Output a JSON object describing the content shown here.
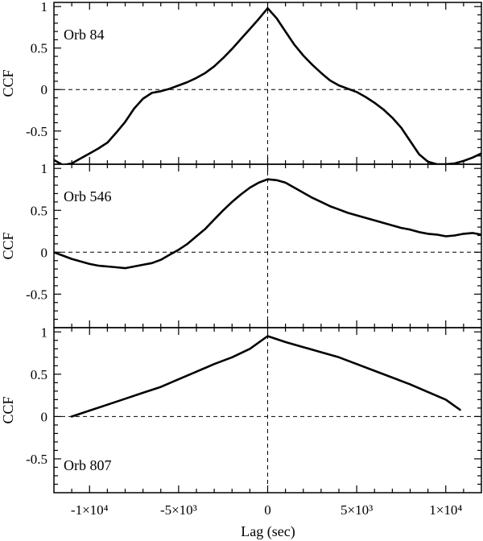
{
  "chart_data": {
    "type": "line",
    "xlabel": "Lag (sec)",
    "xlim": [
      -12000,
      12000
    ],
    "x_ticks": [
      {
        "value": -10000,
        "label": "-1×10⁴"
      },
      {
        "value": -5000,
        "label": "-5×10³"
      },
      {
        "value": 0,
        "label": "0"
      },
      {
        "value": 5000,
        "label": "5×10³"
      },
      {
        "value": 10000,
        "label": "1×10⁴"
      }
    ],
    "ylabel": "CCF",
    "y_ticks": [
      {
        "value": 1,
        "label": "1"
      },
      {
        "value": 0.5,
        "label": "0.5"
      },
      {
        "value": 0,
        "label": "0"
      },
      {
        "value": -0.5,
        "label": "-0.5"
      }
    ],
    "panels": [
      {
        "label": "Orb 84",
        "label_position": "top-left",
        "ylim": [
          -0.9,
          1.05
        ],
        "series": [
          {
            "x": [
              -12000,
              -11500,
              -11000,
              -10500,
              -10000,
              -9500,
              -9000,
              -8500,
              -8000,
              -7500,
              -7000,
              -6500,
              -6000,
              -5500,
              -5000,
              -4500,
              -4000,
              -3500,
              -3000,
              -2500,
              -2000,
              -1500,
              -1000,
              -500,
              0,
              500,
              1000,
              1500,
              2000,
              2500,
              3000,
              3500,
              4000,
              4500,
              5000,
              5500,
              6000,
              6500,
              7000,
              7500,
              8000,
              8500,
              9000,
              9500,
              10000,
              10500,
              11000,
              11500,
              12000
            ],
            "y": [
              -0.85,
              -0.91,
              -0.89,
              -0.83,
              -0.77,
              -0.71,
              -0.64,
              -0.52,
              -0.39,
              -0.23,
              -0.11,
              -0.04,
              -0.02,
              0.01,
              0.05,
              0.09,
              0.14,
              0.2,
              0.28,
              0.38,
              0.49,
              0.61,
              0.73,
              0.85,
              0.98,
              0.86,
              0.7,
              0.54,
              0.41,
              0.3,
              0.2,
              0.11,
              0.05,
              0.01,
              -0.03,
              -0.09,
              -0.16,
              -0.24,
              -0.34,
              -0.46,
              -0.62,
              -0.78,
              -0.87,
              -0.9,
              -0.9,
              -0.89,
              -0.86,
              -0.82,
              -0.77
            ]
          }
        ]
      },
      {
        "label": "Orb 546",
        "label_position": "top-left",
        "ylim": [
          -0.9,
          1.05
        ],
        "series": [
          {
            "x": [
              -12000,
              -11500,
              -11000,
              -10500,
              -10000,
              -9500,
              -9000,
              -8500,
              -8000,
              -7500,
              -7000,
              -6500,
              -6000,
              -5500,
              -5000,
              -4500,
              -4000,
              -3500,
              -3000,
              -2500,
              -2000,
              -1500,
              -1000,
              -500,
              0,
              500,
              1000,
              1500,
              2000,
              2500,
              3000,
              3500,
              4000,
              4500,
              5000,
              5500,
              6000,
              6500,
              7000,
              7500,
              8000,
              8500,
              9000,
              9500,
              10000,
              10500,
              11000,
              11500,
              12000
            ],
            "y": [
              0.0,
              -0.04,
              -0.08,
              -0.11,
              -0.14,
              -0.16,
              -0.17,
              -0.18,
              -0.19,
              -0.17,
              -0.15,
              -0.13,
              -0.09,
              -0.03,
              0.03,
              0.1,
              0.19,
              0.28,
              0.39,
              0.5,
              0.6,
              0.69,
              0.77,
              0.83,
              0.87,
              0.86,
              0.83,
              0.77,
              0.71,
              0.65,
              0.6,
              0.55,
              0.51,
              0.47,
              0.44,
              0.41,
              0.38,
              0.35,
              0.32,
              0.29,
              0.27,
              0.24,
              0.22,
              0.21,
              0.19,
              0.2,
              0.22,
              0.23,
              0.21
            ]
          }
        ]
      },
      {
        "label": "Orb 807",
        "label_position": "bottom-left",
        "ylim": [
          -0.9,
          1.05
        ],
        "series": [
          {
            "x": [
              -11000,
              -10000,
              -9000,
              -8000,
              -7000,
              -6000,
              -5000,
              -4000,
              -3000,
              -2000,
              -1000,
              0,
              1000,
              2000,
              3000,
              4000,
              5000,
              6000,
              7000,
              8000,
              9000,
              10000,
              10800
            ],
            "y": [
              0.0,
              0.07,
              0.14,
              0.21,
              0.28,
              0.35,
              0.44,
              0.53,
              0.62,
              0.7,
              0.8,
              0.95,
              0.88,
              0.82,
              0.76,
              0.7,
              0.62,
              0.54,
              0.46,
              0.38,
              0.29,
              0.2,
              0.08
            ]
          }
        ]
      }
    ]
  }
}
